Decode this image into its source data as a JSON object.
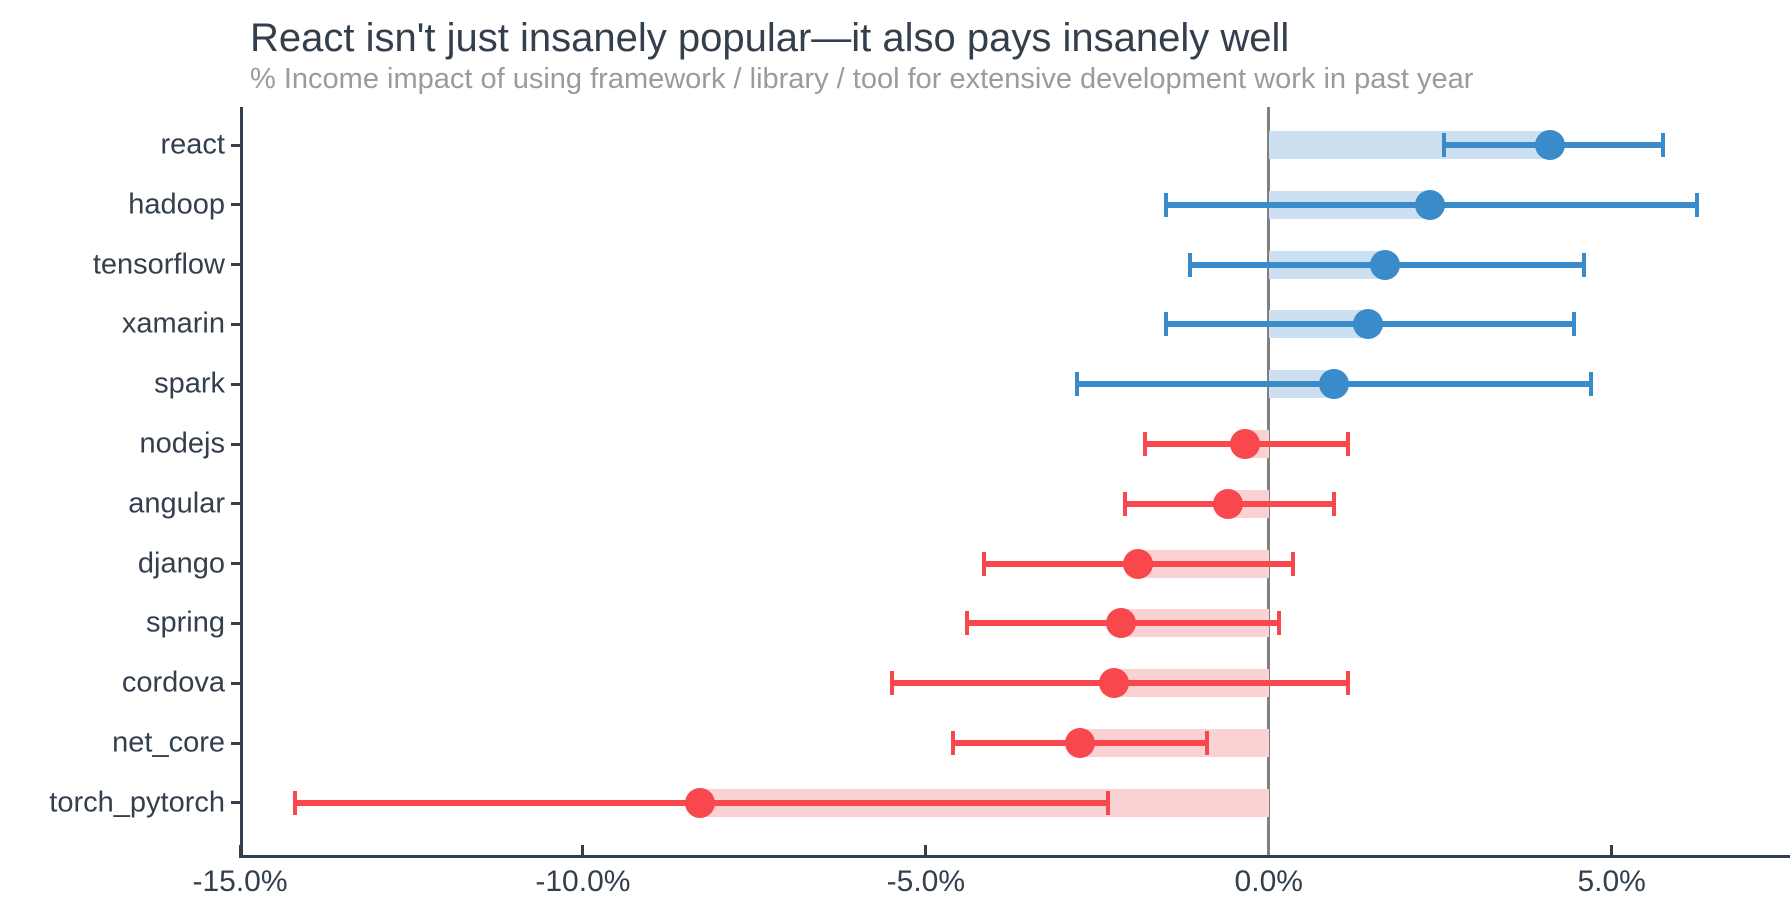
{
  "chart_data": {
    "type": "scatter",
    "subtype": "dot_plot_with_error_bars_and_bars",
    "orientation": "horizontal",
    "title": "React isn't just insanely popular—it also pays insanely well",
    "subtitle": "% Income impact of using framework / library / tool for extensive development work in past year",
    "xlabel": "",
    "ylabel": "",
    "grid": false,
    "legend": "none",
    "zero_reference_line": true,
    "xlim": [
      -15.0,
      7.6
    ],
    "x_ticks": [
      {
        "value": -15,
        "label": "-15.0%"
      },
      {
        "value": -10,
        "label": "-10.0%"
      },
      {
        "value": -5,
        "label": "-5.0%"
      },
      {
        "value": 0,
        "label": "0.0%"
      },
      {
        "value": 5,
        "label": "5.0%"
      }
    ],
    "categories": [
      "react",
      "hadoop",
      "tensorflow",
      "xamarin",
      "spark",
      "nodejs",
      "angular",
      "django",
      "spring",
      "cordova",
      "net_core",
      "torch_pytorch"
    ],
    "points": [
      {
        "label": "react",
        "value": 4.1,
        "ci_low": 2.55,
        "ci_high": 5.75
      },
      {
        "label": "hadoop",
        "value": 2.35,
        "ci_low": -1.5,
        "ci_high": 6.25
      },
      {
        "label": "tensorflow",
        "value": 1.7,
        "ci_low": -1.15,
        "ci_high": 4.6
      },
      {
        "label": "xamarin",
        "value": 1.45,
        "ci_low": -1.5,
        "ci_high": 4.45
      },
      {
        "label": "spark",
        "value": 0.95,
        "ci_low": -2.8,
        "ci_high": 4.7
      },
      {
        "label": "nodejs",
        "value": -0.35,
        "ci_low": -1.8,
        "ci_high": 1.15
      },
      {
        "label": "angular",
        "value": -0.6,
        "ci_low": -2.1,
        "ci_high": 0.95
      },
      {
        "label": "django",
        "value": -1.9,
        "ci_low": -4.15,
        "ci_high": 0.35
      },
      {
        "label": "spring",
        "value": -2.15,
        "ci_low": -4.4,
        "ci_high": 0.15
      },
      {
        "label": "cordova",
        "value": -2.25,
        "ci_low": -5.5,
        "ci_high": 1.15
      },
      {
        "label": "net_core",
        "value": -2.75,
        "ci_low": -4.6,
        "ci_high": -0.9
      },
      {
        "label": "torch_pytorch",
        "value": -8.3,
        "ci_low": -14.2,
        "ci_high": -2.35
      }
    ],
    "colors": {
      "positive_marker": "#3a8bca",
      "positive_bar": "#cce0f2",
      "negative_marker": "#f8484e",
      "negative_bar": "#fbd2d4",
      "zero_line": "#7f7f7f",
      "axis": "#333f4c",
      "title_text": "#333f4c",
      "subtitle_text": "#9b9b9b"
    }
  }
}
